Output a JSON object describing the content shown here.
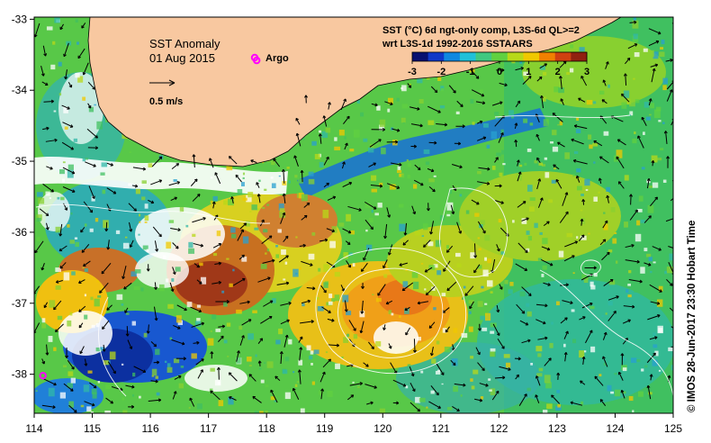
{
  "map": {
    "title": "SST Anomaly",
    "date": "01 Aug 2015",
    "argo_label": "Argo",
    "arrow_scale_label": "0.5 m/s",
    "product_line1": "SST (°C) 6d ngt-only comp, L3S-6d QL>=2",
    "product_line2": "wrt L3S-1d 1992-2016 SSTAARS",
    "credit": "© IMOS 28-Jun-2017 23:30 Hobart Time",
    "colorbar": {
      "ticks": [
        "-3",
        "-2",
        "-1",
        "0",
        "1",
        "2",
        "3"
      ],
      "colors": [
        "#081070",
        "#1038c8",
        "#1088e0",
        "#20c0d8",
        "#40c880",
        "#60d040",
        "#b8d818",
        "#f0c800",
        "#f08000",
        "#d04010",
        "#902010"
      ]
    },
    "x_ticks": [
      "114",
      "115",
      "116",
      "117",
      "118",
      "119",
      "120",
      "121",
      "122",
      "123",
      "124",
      "125"
    ],
    "y_ticks": [
      "-33",
      "-34",
      "-35",
      "-36",
      "-37",
      "-38"
    ],
    "land_color": "#f8c8a0",
    "argo_color": "#ff00ff",
    "argo_floats": [
      {
        "lon": 117.83,
        "lat": -33.58
      },
      {
        "lon": 114.15,
        "lat": -38.02
      }
    ]
  }
}
